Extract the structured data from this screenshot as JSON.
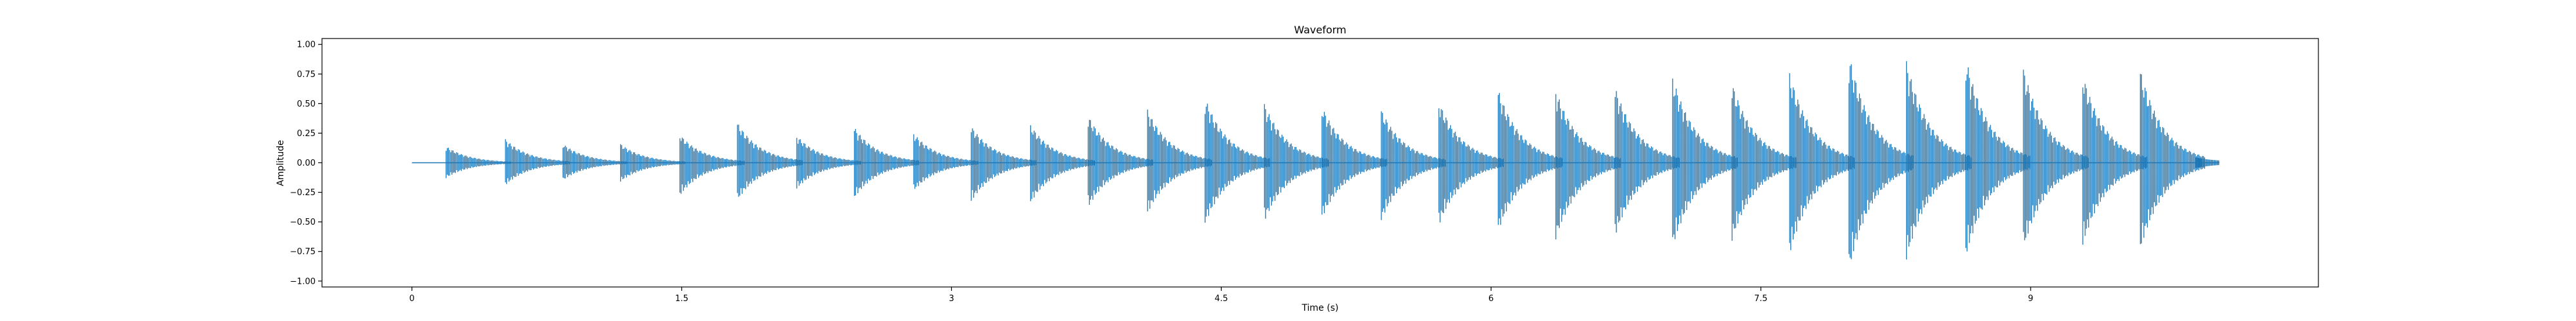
{
  "chart_data": {
    "type": "line",
    "title": "Waveform",
    "xlabel": "Time (s)",
    "ylabel": "Amplitude",
    "xlim": [
      -0.5,
      10.6
    ],
    "ylim": [
      -1.05,
      1.05
    ],
    "x_ticks": [
      0,
      1.5,
      3,
      4.5,
      6,
      7.5,
      9
    ],
    "x_tick_labels": [
      "0",
      "1.5",
      "3",
      "4.5",
      "6",
      "7.5",
      "9"
    ],
    "y_ticks": [
      -1.0,
      -0.75,
      -0.5,
      -0.25,
      0.0,
      0.25,
      0.5,
      0.75,
      1.0
    ],
    "y_tick_labels": [
      "−1.00",
      "−0.75",
      "−0.50",
      "−0.25",
      "0.00",
      "0.25",
      "0.50",
      "0.75",
      "1.00"
    ],
    "grid": false,
    "series": [
      {
        "color": "#1f77b4",
        "signal_start": 0.0,
        "signal_end": 10.05,
        "bursts": [
          {
            "t": 0.19,
            "peak_pos": 0.14,
            "peak_neg": -0.13
          },
          {
            "t": 0.52,
            "peak_pos": 0.2,
            "peak_neg": -0.19
          },
          {
            "t": 0.84,
            "peak_pos": 0.16,
            "peak_neg": -0.15
          },
          {
            "t": 1.16,
            "peak_pos": 0.16,
            "peak_neg": -0.16
          },
          {
            "t": 1.49,
            "peak_pos": 0.24,
            "peak_neg": -0.28
          },
          {
            "t": 1.81,
            "peak_pos": 0.34,
            "peak_neg": -0.32
          },
          {
            "t": 2.14,
            "peak_pos": 0.23,
            "peak_neg": -0.22
          },
          {
            "t": 2.46,
            "peak_pos": 0.3,
            "peak_neg": -0.3
          },
          {
            "t": 2.79,
            "peak_pos": 0.25,
            "peak_neg": -0.24
          },
          {
            "t": 3.11,
            "peak_pos": 0.31,
            "peak_neg": -0.33
          },
          {
            "t": 3.44,
            "peak_pos": 0.32,
            "peak_neg": -0.34
          },
          {
            "t": 3.76,
            "peak_pos": 0.4,
            "peak_neg": -0.38
          },
          {
            "t": 4.09,
            "peak_pos": 0.45,
            "peak_neg": -0.43
          },
          {
            "t": 4.41,
            "peak_pos": 0.55,
            "peak_neg": -0.52
          },
          {
            "t": 4.74,
            "peak_pos": 0.5,
            "peak_neg": -0.5
          },
          {
            "t": 5.06,
            "peak_pos": 0.48,
            "peak_neg": -0.47
          },
          {
            "t": 5.39,
            "peak_pos": 0.45,
            "peak_neg": -0.49
          },
          {
            "t": 5.71,
            "peak_pos": 0.52,
            "peak_neg": -0.53
          },
          {
            "t": 6.04,
            "peak_pos": 0.62,
            "peak_neg": -0.58
          },
          {
            "t": 6.36,
            "peak_pos": 0.62,
            "peak_neg": -0.65
          },
          {
            "t": 6.69,
            "peak_pos": 0.64,
            "peak_neg": -0.62
          },
          {
            "t": 7.01,
            "peak_pos": 0.73,
            "peak_neg": -0.72
          },
          {
            "t": 7.34,
            "peak_pos": 0.68,
            "peak_neg": -0.66
          },
          {
            "t": 7.66,
            "peak_pos": 0.76,
            "peak_neg": -0.78
          },
          {
            "t": 7.99,
            "peak_pos": 0.92,
            "peak_neg": -0.92
          },
          {
            "t": 8.31,
            "peak_pos": 0.86,
            "peak_neg": -0.82
          },
          {
            "t": 8.64,
            "peak_pos": 0.89,
            "peak_neg": -0.8
          },
          {
            "t": 8.96,
            "peak_pos": 0.8,
            "peak_neg": -0.73
          },
          {
            "t": 9.29,
            "peak_pos": 0.75,
            "peak_neg": -0.7
          },
          {
            "t": 9.61,
            "peak_pos": 0.79,
            "peak_neg": -0.74
          }
        ]
      }
    ]
  }
}
